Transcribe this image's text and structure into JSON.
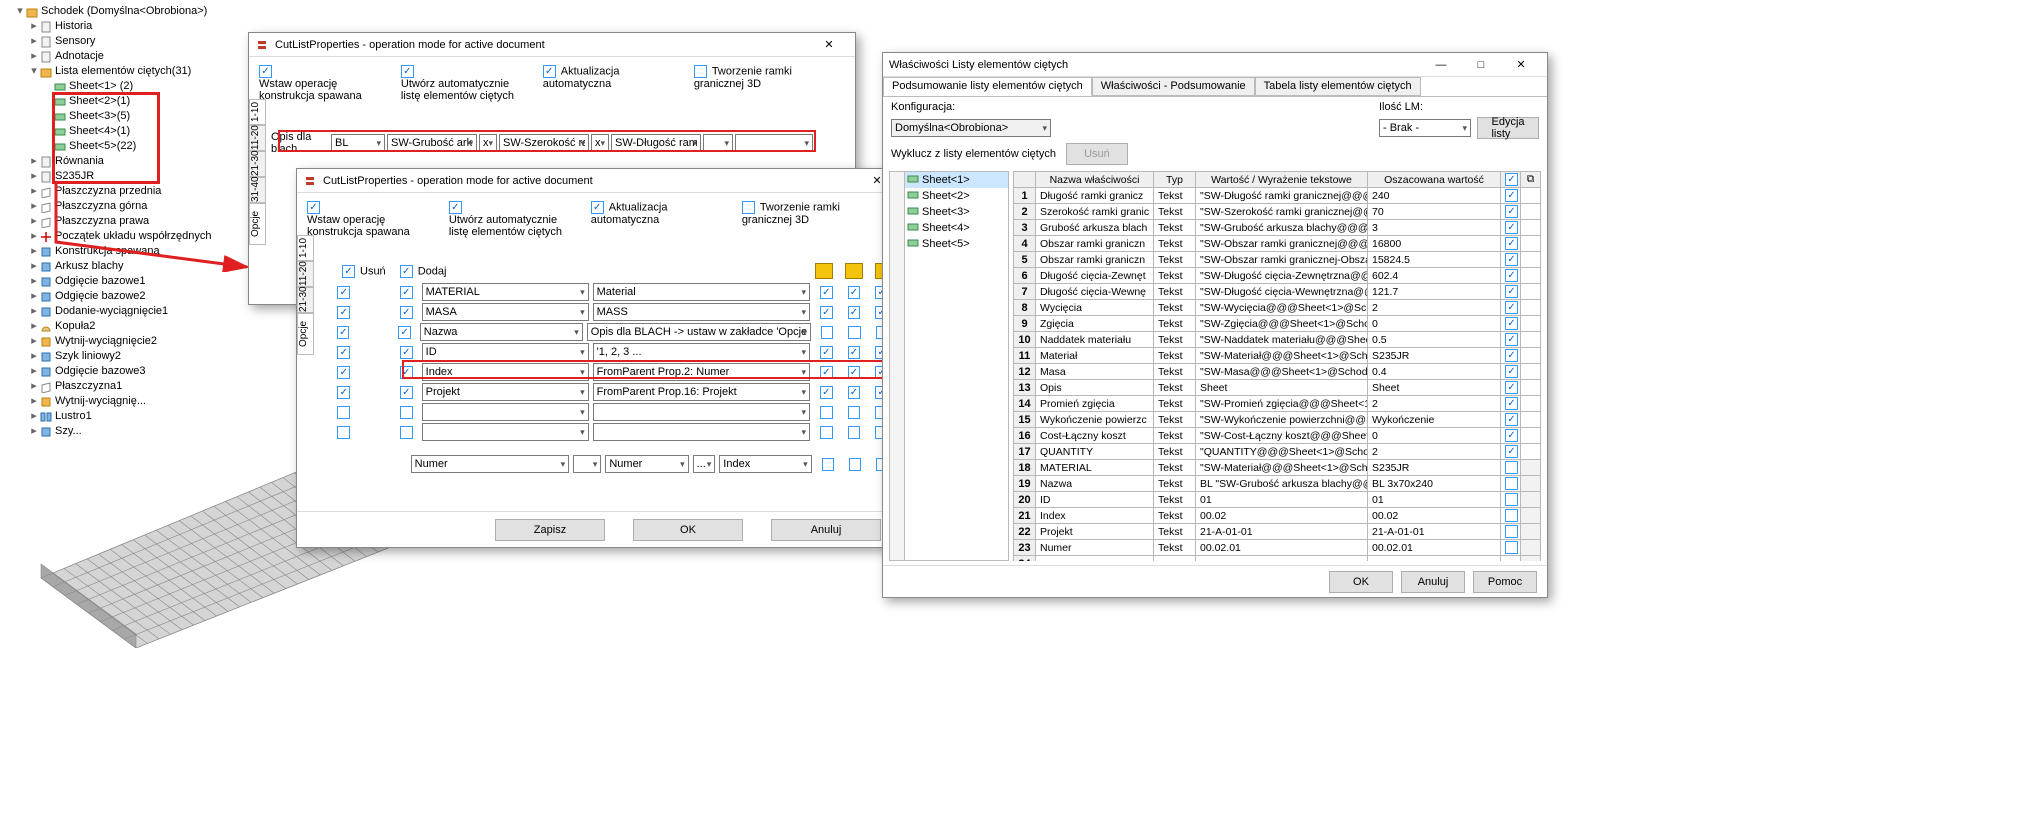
{
  "tree": {
    "root": "Schodek  (Domyślna<Obrobiona>)",
    "items": [
      {
        "ind": 1,
        "ic": "page",
        "lbl": "Historia"
      },
      {
        "ind": 1,
        "ic": "page",
        "lbl": "Sensory"
      },
      {
        "ind": 1,
        "ic": "page",
        "lbl": "Adnotacje"
      },
      {
        "ind": 1,
        "ic": "folder",
        "lbl": "Lista elementów ciętych(31)",
        "exp": true
      },
      {
        "ind": 2,
        "ic": "sheet",
        "lbl": "Sheet<1> (2)"
      },
      {
        "ind": 2,
        "ic": "sheet",
        "lbl": "Sheet<2>(1)"
      },
      {
        "ind": 2,
        "ic": "sheet",
        "lbl": "Sheet<3>(5)"
      },
      {
        "ind": 2,
        "ic": "sheet",
        "lbl": "Sheet<4>(1)"
      },
      {
        "ind": 2,
        "ic": "sheet",
        "lbl": "Sheet<5>(22)"
      },
      {
        "ind": 1,
        "ic": "page",
        "lbl": "Równania"
      },
      {
        "ind": 1,
        "ic": "page",
        "lbl": "S235JR"
      },
      {
        "ind": 1,
        "ic": "plane",
        "lbl": "Płaszczyzna przednia"
      },
      {
        "ind": 1,
        "ic": "plane",
        "lbl": "Płaszczyzna górna"
      },
      {
        "ind": 1,
        "ic": "plane",
        "lbl": "Płaszczyzna prawa"
      },
      {
        "ind": 1,
        "ic": "origin",
        "lbl": "Początek układu współrzędnych"
      },
      {
        "ind": 1,
        "ic": "feat",
        "lbl": "Konstrukcja spawana"
      },
      {
        "ind": 1,
        "ic": "feat",
        "lbl": "Arkusz blachy"
      },
      {
        "ind": 1,
        "ic": "feat",
        "lbl": "Odgięcie bazowe1"
      },
      {
        "ind": 1,
        "ic": "feat",
        "lbl": "Odgięcie bazowe2"
      },
      {
        "ind": 1,
        "ic": "feat",
        "lbl": "Dodanie-wyciągnięcie1"
      },
      {
        "ind": 1,
        "ic": "dome",
        "lbl": "Kopuła2"
      },
      {
        "ind": 1,
        "ic": "cut",
        "lbl": "Wytnij-wyciągnięcie2"
      },
      {
        "ind": 1,
        "ic": "feat",
        "lbl": "Szyk liniowy2"
      },
      {
        "ind": 1,
        "ic": "feat",
        "lbl": "Odgięcie bazowe3"
      },
      {
        "ind": 1,
        "ic": "plane",
        "lbl": "Płaszczyzna1"
      },
      {
        "ind": 1,
        "ic": "cut",
        "lbl": "Wytnij-wyciągnię..."
      },
      {
        "ind": 1,
        "ic": "mirror",
        "lbl": "Lustro1"
      },
      {
        "ind": 1,
        "ic": "feat",
        "lbl": "Szy..."
      }
    ]
  },
  "dlg1": {
    "title": "CutListProperties - operation mode for active document",
    "chk1": "Wstaw operację konstrukcja spawana",
    "chk2": "Utwórz automatycznie listę elementów ciętych",
    "chk3": "Aktualizacja automatyczna",
    "chk4": "Tworzenie ramki granicznej 3D",
    "vtabs": [
      "1-10",
      "11-20",
      "21-30",
      "31-40",
      "Opcje"
    ],
    "row_label": "Opis dla blach",
    "cells": [
      "BL",
      "SW-Grubość arku",
      "x",
      "SW-Szerokość ram",
      "x",
      "SW-Długość ram",
      "",
      ""
    ]
  },
  "dlg2": {
    "title": "CutListProperties - operation mode for active document",
    "chk1": "Wstaw operację konstrukcja spawana",
    "chk2": "Utwórz automatycznie listę elementów ciętych",
    "chk3": "Aktualizacja automatyczna",
    "chk4": "Tworzenie ramki granicznej 3D",
    "vtabs": [
      "1-10",
      "11-20",
      "21-30",
      "Opcje"
    ],
    "h_usun": "Usuń",
    "h_dodaj": "Dodaj",
    "rows": [
      {
        "c1": true,
        "c2": true,
        "p": "MATERIAL",
        "v": "Material",
        "a": true,
        "b": true,
        "c": true
      },
      {
        "c1": true,
        "c2": true,
        "p": "MASA",
        "v": "MASS",
        "a": true,
        "b": true,
        "c": true
      },
      {
        "c1": true,
        "c2": true,
        "p": "Nazwa",
        "v": "Opis dla BLACH -> ustaw w zakładce 'Opcje'",
        "a": false,
        "b": false,
        "c": false
      },
      {
        "c1": true,
        "c2": true,
        "p": "ID",
        "v": "'1, 2, 3 ...",
        "a": true,
        "b": true,
        "c": true
      },
      {
        "c1": true,
        "c2": true,
        "p": "Index",
        "v": "FromParent Prop.2: Numer",
        "a": true,
        "b": true,
        "c": true
      },
      {
        "c1": true,
        "c2": true,
        "p": "Projekt",
        "v": "FromParent Prop.16: Projekt",
        "a": true,
        "b": true,
        "c": true
      },
      {
        "c1": false,
        "c2": false,
        "p": "",
        "v": "",
        "a": false,
        "b": false,
        "c": false
      },
      {
        "c1": false,
        "c2": false,
        "p": "",
        "v": "",
        "a": false,
        "b": false,
        "c": false
      }
    ],
    "foot": [
      "Numer",
      "",
      "Numer",
      "...",
      "Index"
    ],
    "btn_save": "Zapisz",
    "btn_ok": "OK",
    "btn_cancel": "Anuluj"
  },
  "dlg3": {
    "title": "Właściwości Listy elementów ciętych",
    "tabs": [
      "Podsumowanie listy elementów ciętych",
      "Właściwości - Podsumowanie",
      "Tabela listy elementów ciętych"
    ],
    "cfg_lbl": "Konfiguracja:",
    "cfg_val": "Domyślna<Obrobiona>",
    "ilosc_lbl": "Ilość LM:",
    "ilosc_val": "- Brak -",
    "btn_edit": "Edycja listy",
    "excl_lbl": "Wyklucz z listy elementów ciętych",
    "btn_del": "Usuń",
    "sheet_list": [
      "Sheet<1>",
      "Sheet<2>",
      "Sheet<3>",
      "Sheet<4>",
      "Sheet<5>"
    ],
    "cols": [
      "Nazwa właściwości",
      "Typ",
      "Wartość / Wyrażenie tekstowe",
      "Oszacowana wartość"
    ],
    "rows": [
      [
        "Długość ramki granicz",
        "Tekst",
        "\"SW-Długość ramki granicznej@@@S",
        "240"
      ],
      [
        "Szerokość ramki granic",
        "Tekst",
        "\"SW-Szerokość ramki granicznej@@",
        "70"
      ],
      [
        "Grubość arkusza blach",
        "Tekst",
        "\"SW-Grubość arkusza blachy@@@Sh",
        "3"
      ],
      [
        "Obszar ramki graniczn",
        "Tekst",
        "\"SW-Obszar ramki granicznej@@@Sh",
        "16800"
      ],
      [
        "Obszar ramki graniczn",
        "Tekst",
        "\"SW-Obszar ramki granicznej-Obszar",
        "15824.5"
      ],
      [
        "Długość cięcia-Zewnęt",
        "Tekst",
        "\"SW-Długość cięcia-Zewnętrzna@@",
        "602.4"
      ],
      [
        "Długość cięcia-Wewnę",
        "Tekst",
        "\"SW-Długość cięcia-Wewnętrzna@@",
        "121.7"
      ],
      [
        "Wycięcia",
        "Tekst",
        "\"SW-Wycięcia@@@Sheet<1>@Scho",
        "2"
      ],
      [
        "Zgięcia",
        "Tekst",
        "\"SW-Zgięcia@@@Sheet<1>@Schode",
        "0"
      ],
      [
        "Naddatek materiału",
        "Tekst",
        "\"SW-Naddatek materiału@@@Sheet",
        "0.5"
      ],
      [
        "Materiał",
        "Tekst",
        "\"SW-Materiał@@@Sheet<1>@Schod",
        "S235JR"
      ],
      [
        "Masa",
        "Tekst",
        "\"SW-Masa@@@Sheet<1>@Schodek.",
        "0.4"
      ],
      [
        "Opis",
        "Tekst",
        "Sheet",
        "Sheet"
      ],
      [
        "Promień zgięcia",
        "Tekst",
        "\"SW-Promień zgięcia@@@Sheet<1>",
        "2"
      ],
      [
        "Wykończenie powierzc",
        "Tekst",
        "\"SW-Wykończenie powierzchni@@@",
        "Wykończenie <nieokreślo"
      ],
      [
        "Cost-Łączny koszt",
        "Tekst",
        "\"SW-Cost-Łączny koszt@@@Sheet<1",
        "0"
      ],
      [
        "QUANTITY",
        "Tekst",
        "\"QUANTITY@@@Sheet<1>@Schodek",
        "2"
      ],
      [
        "MATERIAL",
        "Tekst",
        "\"SW-Materiał@@@Sheet<1>@Schod",
        "S235JR"
      ],
      [
        "Nazwa",
        "Tekst",
        "BL \"SW-Grubość arkusza blachy@@@",
        "BL 3x70x240"
      ],
      [
        "ID",
        "Tekst",
        "01",
        "01"
      ],
      [
        "Index",
        "Tekst",
        "00.02",
        "00.02"
      ],
      [
        "Projekt",
        "Tekst",
        "21-A-01-01",
        "21-A-01-01"
      ],
      [
        "Numer",
        "Tekst",
        "00.02.01",
        "00.02.01"
      ],
      [
        "<Wpisz nową właściw",
        "",
        "",
        ""
      ]
    ],
    "btn_ok": "OK",
    "btn_cancel": "Anuluj",
    "btn_help": "Pomoc"
  }
}
